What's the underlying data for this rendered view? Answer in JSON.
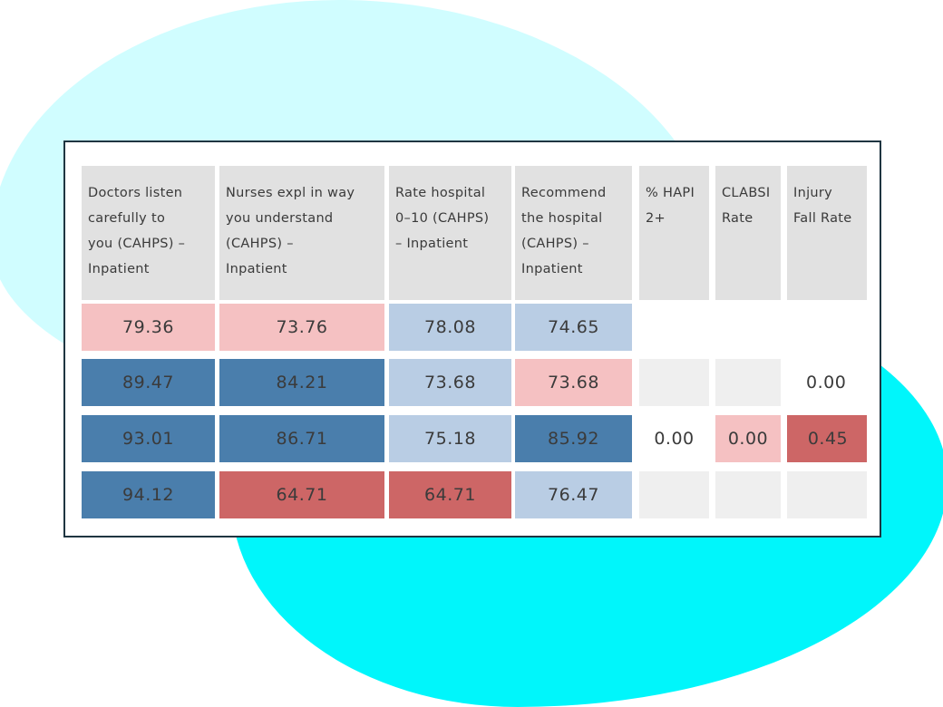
{
  "table": {
    "columns": [
      "Doctors listen\ncarefully to\nyou (CAHPS) –\nInpatient",
      "Nurses expl in way\nyou understand\n(CAHPS) –\nInpatient",
      "Rate hospital\n0–10 (CAHPS)\n– Inpatient",
      "Recommend\nthe hospital\n(CAHPS) –\nInpatient",
      "% HAPI\n2+",
      "CLABSI\nRate",
      "Injury\nFall Rate"
    ],
    "rows": [
      [
        {
          "value": "79.36",
          "color": "#f5c1c2"
        },
        {
          "value": "73.76",
          "color": "#f5c1c2"
        },
        {
          "value": "78.08",
          "color": "#b9cde4"
        },
        {
          "value": "74.65",
          "color": "#b9cde4"
        },
        {
          "value": "",
          "color": "#ffffff"
        },
        {
          "value": "",
          "color": "#ffffff"
        },
        {
          "value": "",
          "color": "#ffffff"
        }
      ],
      [
        {
          "value": "89.47",
          "color": "#4a7eac"
        },
        {
          "value": "84.21",
          "color": "#4a7eac"
        },
        {
          "value": "73.68",
          "color": "#b9cde4"
        },
        {
          "value": "73.68",
          "color": "#f5c1c2"
        },
        {
          "value": "",
          "color": "#efefef"
        },
        {
          "value": "",
          "color": "#efefef"
        },
        {
          "value": "0.00",
          "color": "#ffffff"
        }
      ],
      [
        {
          "value": "93.01",
          "color": "#4a7eac"
        },
        {
          "value": "86.71",
          "color": "#4a7eac"
        },
        {
          "value": "75.18",
          "color": "#b9cde4"
        },
        {
          "value": "85.92",
          "color": "#4a7eac"
        },
        {
          "value": "0.00",
          "color": "#ffffff"
        },
        {
          "value": "0.00",
          "color": "#f5c1c2"
        },
        {
          "value": "0.45",
          "color": "#cd6666"
        }
      ],
      [
        {
          "value": "94.12",
          "color": "#4a7eac"
        },
        {
          "value": "64.71",
          "color": "#cd6666"
        },
        {
          "value": "64.71",
          "color": "#cd6666"
        },
        {
          "value": "76.47",
          "color": "#b9cde4"
        },
        {
          "value": "",
          "color": "#efefef"
        },
        {
          "value": "",
          "color": "#efefef"
        },
        {
          "value": "",
          "color": "#efefef"
        }
      ]
    ]
  }
}
